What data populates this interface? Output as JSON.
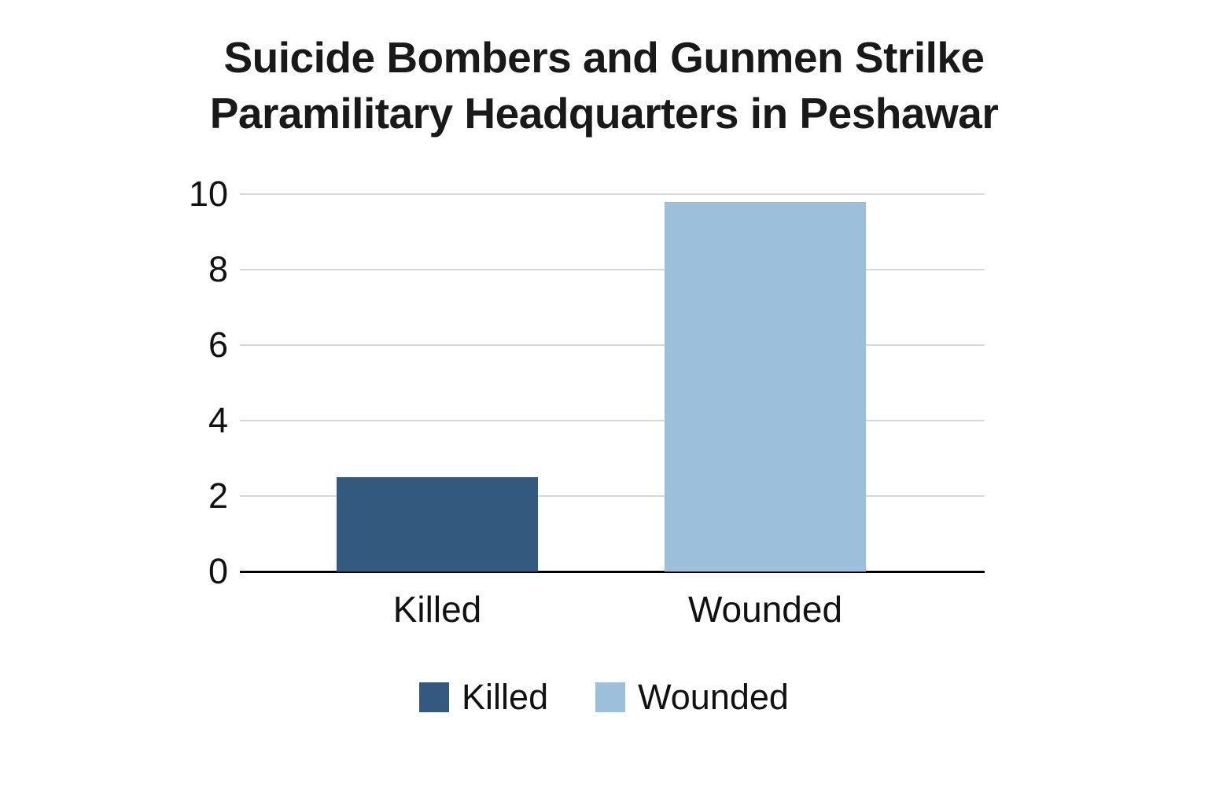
{
  "figure": {
    "title_line1": "Suicide Bombers and Gunmen Strilke",
    "title_line2": "Paramilitary Headquarters in Peshawar"
  },
  "chart_data": {
    "type": "bar",
    "title": "Suicide Bombers and Gunmen Strilke Paramilitary Headquarters in Peshawar",
    "categories": [
      "Killed",
      "Wounded"
    ],
    "values": [
      2.5,
      9.8
    ],
    "colors": [
      "#33597e",
      "#9cbfdc"
    ],
    "xlabel": "",
    "ylabel": "",
    "ylim": [
      0,
      10
    ],
    "yticks": [
      0,
      2,
      4,
      6,
      8,
      10
    ],
    "grid": true,
    "gridline_color": "#d8d8d8",
    "axis_line_color": "#000000",
    "background_color": "#ffffff",
    "legend": {
      "position": "bottom",
      "entries": [
        "Killed",
        "Wounded"
      ]
    }
  }
}
